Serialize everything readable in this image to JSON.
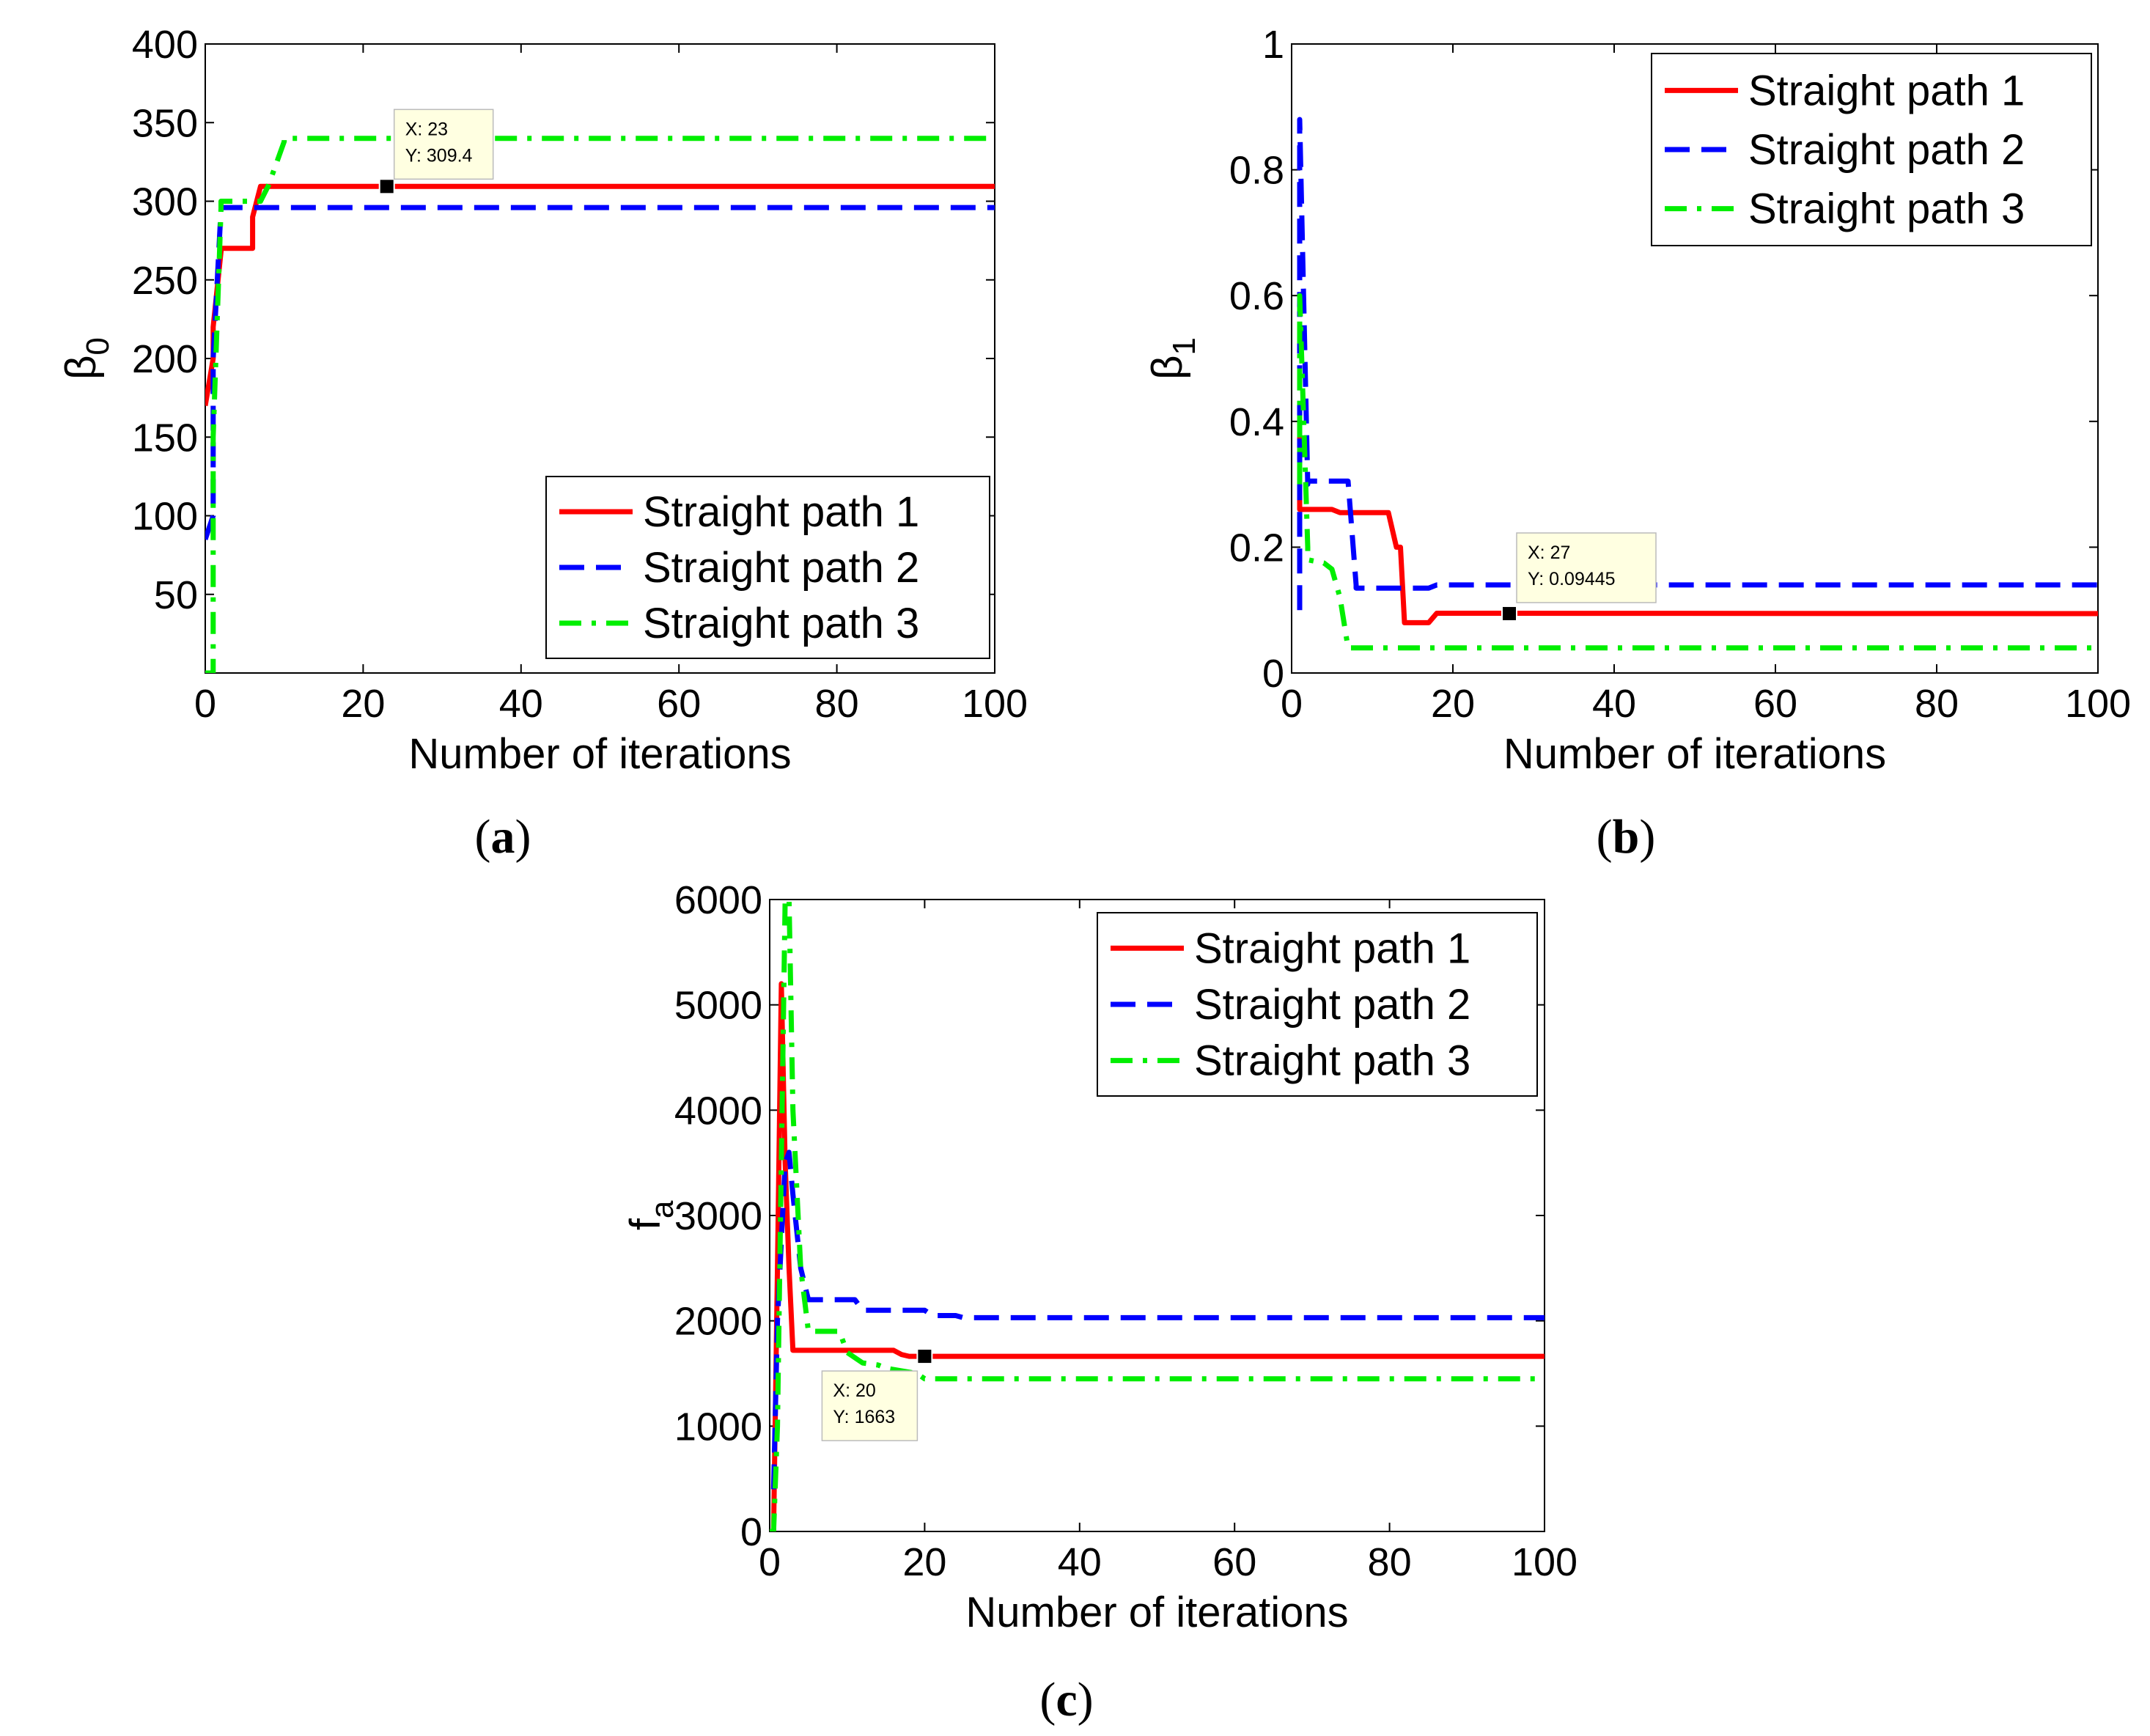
{
  "figure": {
    "panel_labels": [
      {
        "open": "(",
        "letter": "a",
        "close": ")"
      },
      {
        "open": "(",
        "letter": "b",
        "close": ")"
      },
      {
        "open": "(",
        "letter": "c",
        "close": ")"
      }
    ]
  },
  "colors": {
    "path1": "#ff0000",
    "path2": "#0000ff",
    "path3": "#00ee00",
    "datatip_bg": "#ffffe1"
  },
  "chart_data": [
    {
      "type": "line",
      "panel": "a",
      "xlabel": "Number of iterations",
      "ylabel": {
        "main": "β",
        "sub": "0"
      },
      "xlim": [
        0,
        100
      ],
      "ylim": [
        0,
        400
      ],
      "xticks": [
        0,
        20,
        40,
        60,
        80,
        100
      ],
      "yticks": [
        50,
        100,
        150,
        200,
        250,
        300,
        350,
        400
      ],
      "legend_position": "bottom-right",
      "series": [
        {
          "name": "Straight path 1",
          "style": "solid",
          "x": [
            0,
            1,
            1,
            2,
            2,
            6,
            6,
            7,
            7,
            100
          ],
          "y": [
            170,
            200,
            220,
            268,
            270,
            270,
            290,
            309.4,
            309.4,
            309.4
          ]
        },
        {
          "name": "Straight path 2",
          "style": "dashed",
          "x": [
            0,
            1,
            1,
            2,
            2,
            100
          ],
          "y": [
            85,
            100,
            200,
            295,
            296,
            296
          ]
        },
        {
          "name": "Straight path 3",
          "style": "dashdot",
          "x": [
            0,
            1,
            1,
            2,
            2,
            7,
            8,
            10,
            10,
            100
          ],
          "y": [
            0,
            0,
            150,
            295,
            300,
            300,
            310,
            338,
            340,
            340
          ]
        }
      ],
      "datatip": {
        "x": 23,
        "y": 309.4,
        "lines": [
          "X: 23",
          "Y: 309.4"
        ]
      }
    },
    {
      "type": "line",
      "panel": "b",
      "xlabel": "Number of iterations",
      "ylabel": {
        "main": "β",
        "sub": "1"
      },
      "xlim": [
        0,
        100
      ],
      "ylim": [
        0,
        1
      ],
      "xticks": [
        0,
        20,
        40,
        60,
        80,
        100
      ],
      "yticks": [
        0,
        0.2,
        0.4,
        0.6,
        0.8,
        1
      ],
      "yticklabels": [
        "0",
        "0.2",
        "0.4",
        "0.6",
        "0.8",
        "1"
      ],
      "legend_position": "top-right",
      "series": [
        {
          "name": "Straight path 1",
          "style": "solid",
          "x": [
            1,
            1,
            5,
            6,
            12,
            13,
            13.5,
            14,
            14,
            17,
            18,
            100
          ],
          "y": [
            0.4,
            0.26,
            0.26,
            0.255,
            0.255,
            0.2,
            0.2,
            0.08,
            0.08,
            0.08,
            0.095,
            0.09445
          ]
        },
        {
          "name": "Straight path 2",
          "style": "dashed",
          "x": [
            1,
            1,
            2,
            2,
            7,
            8,
            8,
            17,
            18,
            100
          ],
          "y": [
            0.1,
            0.88,
            0.3,
            0.305,
            0.305,
            0.14,
            0.135,
            0.135,
            0.14,
            0.14
          ]
        },
        {
          "name": "Straight path 3",
          "style": "dashdot",
          "x": [
            1,
            1,
            2,
            2,
            4,
            5,
            6,
            7,
            7,
            100
          ],
          "y": [
            0.3,
            0.6,
            0.2,
            0.18,
            0.175,
            0.165,
            0.12,
            0.04,
            0.04,
            0.04
          ]
        }
      ],
      "datatip": {
        "x": 27,
        "y": 0.09445,
        "lines": [
          "X: 27",
          "Y: 0.09445"
        ]
      }
    },
    {
      "type": "line",
      "panel": "c",
      "xlabel": "Number of iterations",
      "ylabel": {
        "main": "f",
        "sub": "a"
      },
      "xlim": [
        0,
        100
      ],
      "ylim": [
        0,
        6000
      ],
      "xticks": [
        0,
        20,
        40,
        60,
        80,
        100
      ],
      "yticks": [
        0,
        1000,
        2000,
        3000,
        4000,
        5000,
        6000
      ],
      "legend_position": "top-right",
      "series": [
        {
          "name": "Straight path 1",
          "style": "solid",
          "x": [
            0.5,
            1,
            1.5,
            2,
            2.5,
            3,
            16,
            17,
            18,
            100
          ],
          "y": [
            0,
            2500,
            5200,
            3500,
            2500,
            1720,
            1720,
            1680,
            1663,
            1663
          ]
        },
        {
          "name": "Straight path 2",
          "style": "dashed",
          "x": [
            0.5,
            1,
            2,
            2.5,
            3,
            4,
            5,
            11,
            12,
            20,
            21,
            24,
            25,
            100
          ],
          "y": [
            400,
            2000,
            3500,
            3600,
            3200,
            2500,
            2200,
            2200,
            2100,
            2100,
            2050,
            2050,
            2030,
            2030
          ]
        },
        {
          "name": "Straight path 3",
          "style": "dashdot",
          "x": [
            0,
            0.5,
            1,
            2,
            2.5,
            3,
            4,
            5,
            9,
            10,
            12,
            14,
            15,
            19,
            20,
            100
          ],
          "y": [
            0,
            0,
            1000,
            6000,
            6000,
            4000,
            2500,
            1900,
            1900,
            1700,
            1600,
            1580,
            1550,
            1500,
            1450,
            1450
          ]
        }
      ],
      "datatip": {
        "x": 20,
        "y": 1663,
        "lines": [
          "X: 20",
          "Y: 1663"
        ]
      }
    }
  ]
}
